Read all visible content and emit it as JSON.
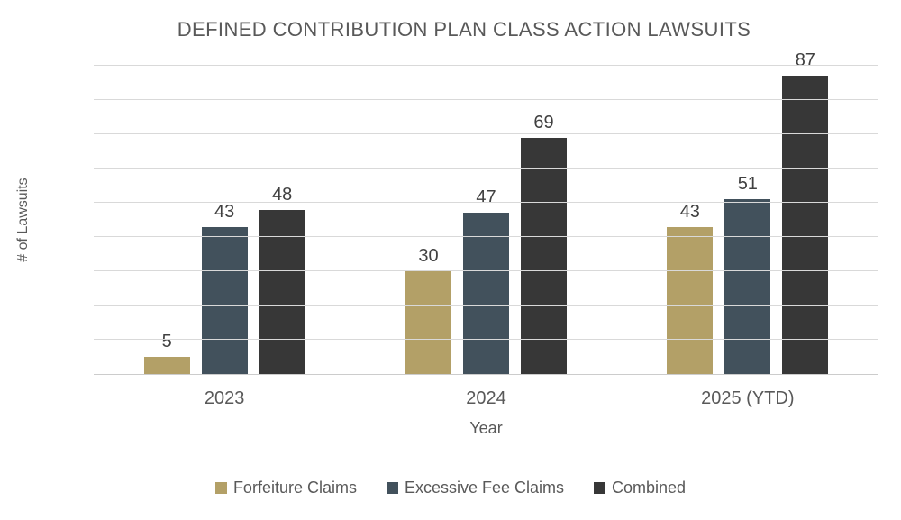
{
  "title": "DEFINED CONTRIBUTION PLAN CLASS ACTION LAWSUITS",
  "chart_data": {
    "type": "bar",
    "categories": [
      "2023",
      "2024",
      "2025 (YTD)"
    ],
    "series": [
      {
        "name": "Forfeiture Claims",
        "color": "#B3A067",
        "values": [
          5,
          30,
          43
        ]
      },
      {
        "name": "Excessive Fee Claims",
        "color": "#42515C",
        "values": [
          43,
          47,
          51
        ]
      },
      {
        "name": "Combined",
        "color": "#373737",
        "values": [
          48,
          69,
          87
        ]
      }
    ],
    "xlabel": "Year",
    "ylabel": "# of Lawsuits",
    "ylim": [
      0,
      90
    ],
    "ytick_step": 10,
    "grid": true,
    "legend_position": "bottom",
    "colors": {
      "title_text": "#595959",
      "axis_text": "#595959",
      "data_label_text": "#404040",
      "gridline": "#D9D9D9",
      "background": "#FFFFFF"
    }
  }
}
